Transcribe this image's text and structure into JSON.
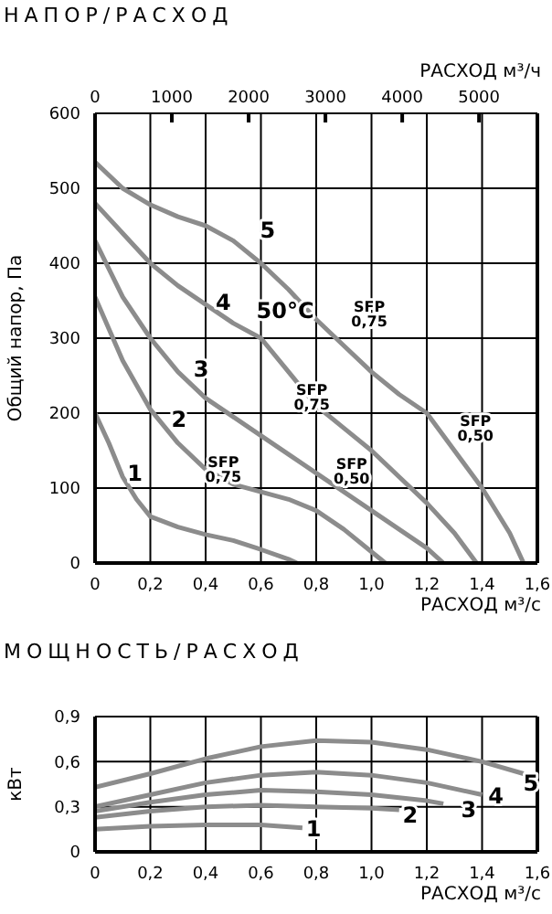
{
  "chart_data": [
    {
      "type": "line",
      "title": "НАПОР/РАСХОД",
      "xlabel": "РАСХОД м³/с",
      "x2label": "РАСХОД м³/ч",
      "ylabel": "Общий напор, Па",
      "xlim": [
        0,
        1.6
      ],
      "xticks": [
        0,
        {
          "value": 0.2,
          "label": "0,2"
        },
        {
          "value": 0.4,
          "label": "0,4"
        },
        {
          "value": 0.6,
          "label": "0,6"
        },
        {
          "value": 0.8,
          "label": "0,8"
        },
        {
          "value": 1.0,
          "label": "1,0"
        },
        {
          "value": 1.2,
          "label": "1,2"
        },
        {
          "value": 1.4,
          "label": "1,4"
        },
        {
          "value": 1.6,
          "label": "1,6"
        }
      ],
      "x2lim": [
        0,
        5760
      ],
      "x2ticks": [
        0,
        1000,
        2000,
        3000,
        4000,
        5000
      ],
      "ylim": [
        0,
        600
      ],
      "yticks": [
        0,
        100,
        200,
        300,
        400,
        500,
        600
      ],
      "grid": true,
      "marker": "none",
      "series": [
        {
          "name": "1",
          "color": "#8c8c8c",
          "x": [
            0,
            0.05,
            0.1,
            0.15,
            0.2,
            0.3,
            0.4,
            0.5,
            0.6,
            0.7,
            0.73
          ],
          "values": [
            200,
            160,
            115,
            85,
            62,
            48,
            38,
            30,
            18,
            5,
            0
          ]
        },
        {
          "name": "2",
          "color": "#8c8c8c",
          "x": [
            0,
            0.1,
            0.2,
            0.3,
            0.4,
            0.5,
            0.6,
            0.7,
            0.8,
            0.9,
            1.0,
            1.05
          ],
          "values": [
            355,
            270,
            205,
            160,
            125,
            105,
            95,
            85,
            70,
            45,
            15,
            0
          ]
        },
        {
          "name": "3",
          "color": "#8c8c8c",
          "x": [
            0,
            0.1,
            0.2,
            0.3,
            0.4,
            0.5,
            0.6,
            0.7,
            0.8,
            0.9,
            1.0,
            1.1,
            1.2,
            1.26
          ],
          "values": [
            430,
            355,
            300,
            255,
            220,
            195,
            170,
            145,
            120,
            95,
            70,
            45,
            20,
            0
          ]
        },
        {
          "name": "4",
          "color": "#8c8c8c",
          "x": [
            0,
            0.1,
            0.2,
            0.3,
            0.4,
            0.5,
            0.6,
            0.7,
            0.8,
            0.9,
            1.0,
            1.1,
            1.2,
            1.3,
            1.38
          ],
          "values": [
            480,
            440,
            400,
            370,
            345,
            320,
            300,
            255,
            210,
            180,
            150,
            115,
            80,
            40,
            0
          ]
        },
        {
          "name": "5",
          "color": "#8c8c8c",
          "x": [
            0,
            0.1,
            0.2,
            0.3,
            0.4,
            0.5,
            0.6,
            0.7,
            0.8,
            0.9,
            1.0,
            1.1,
            1.2,
            1.3,
            1.4,
            1.5,
            1.55
          ],
          "values": [
            535,
            500,
            478,
            462,
            450,
            430,
            400,
            365,
            325,
            290,
            255,
            225,
            200,
            150,
            100,
            40,
            0
          ]
        }
      ],
      "annotations": [
        "50°C",
        "SFP\n0,75",
        "SFP\n0,75",
        "SFP\n0,75",
        "SFP\n0,50",
        "SFP\n0,50"
      ]
    },
    {
      "type": "line",
      "title": "МОЩНОСТЬ/РАСХОД",
      "xlabel": "РАСХОД м³/с",
      "ylabel": "кВт",
      "xlim": [
        0,
        1.6
      ],
      "xticks": [
        0,
        {
          "value": 0.2,
          "label": "0,2"
        },
        {
          "value": 0.4,
          "label": "0,4"
        },
        {
          "value": 0.6,
          "label": "0,6"
        },
        {
          "value": 0.8,
          "label": "0,8"
        },
        {
          "value": 1.0,
          "label": "1,0"
        },
        {
          "value": 1.2,
          "label": "1,2"
        },
        {
          "value": 1.4,
          "label": "1,4"
        },
        {
          "value": 1.6,
          "label": "1,6"
        }
      ],
      "ylim": [
        0,
        0.9
      ],
      "yticks": [
        0,
        {
          "value": 0.3,
          "label": "0,3"
        },
        {
          "value": 0.6,
          "label": "0,6"
        },
        {
          "value": 0.9,
          "label": "0,9"
        }
      ],
      "grid": true,
      "marker": "none",
      "series": [
        {
          "name": "1",
          "color": "#8c8c8c",
          "x": [
            0,
            0.2,
            0.4,
            0.6,
            0.75
          ],
          "values": [
            0.15,
            0.17,
            0.18,
            0.18,
            0.16
          ]
        },
        {
          "name": "2",
          "color": "#8c8c8c",
          "x": [
            0,
            0.2,
            0.4,
            0.6,
            0.8,
            1.0,
            1.1
          ],
          "values": [
            0.23,
            0.27,
            0.3,
            0.31,
            0.3,
            0.29,
            0.28
          ]
        },
        {
          "name": "3",
          "color": "#8c8c8c",
          "x": [
            0,
            0.2,
            0.4,
            0.6,
            0.8,
            1.0,
            1.2,
            1.26
          ],
          "values": [
            0.27,
            0.33,
            0.38,
            0.41,
            0.4,
            0.38,
            0.34,
            0.32
          ]
        },
        {
          "name": "4",
          "color": "#8c8c8c",
          "x": [
            0,
            0.2,
            0.4,
            0.6,
            0.8,
            1.0,
            1.2,
            1.4
          ],
          "values": [
            0.3,
            0.38,
            0.46,
            0.51,
            0.53,
            0.51,
            0.46,
            0.38
          ]
        },
        {
          "name": "5",
          "color": "#8c8c8c",
          "x": [
            0,
            0.2,
            0.4,
            0.6,
            0.8,
            1.0,
            1.2,
            1.4,
            1.55
          ],
          "values": [
            0.43,
            0.52,
            0.62,
            0.7,
            0.74,
            0.73,
            0.68,
            0.6,
            0.52
          ]
        }
      ]
    }
  ]
}
